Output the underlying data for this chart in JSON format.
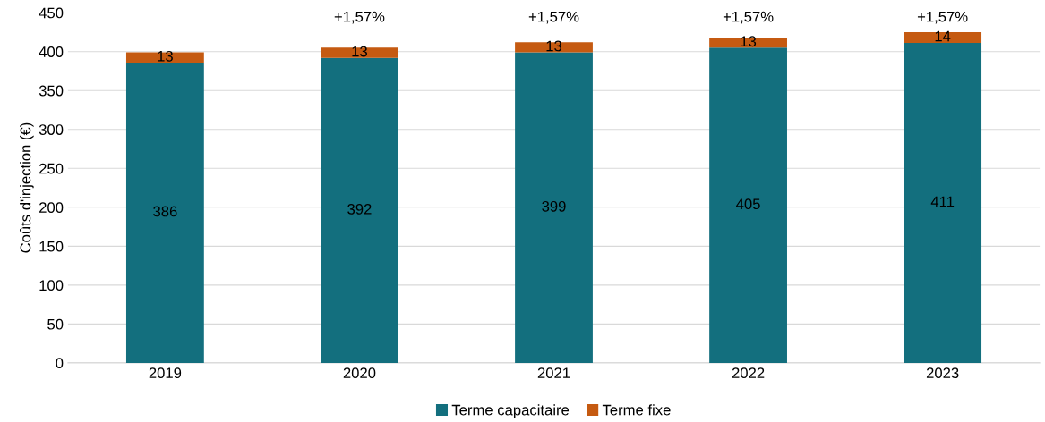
{
  "chart_data": {
    "type": "bar",
    "ylabel": "Coûts d'injection (€)",
    "categories": [
      "2019",
      "2020",
      "2021",
      "2022",
      "2023"
    ],
    "stacked": true,
    "series": [
      {
        "name": "Terme capacitaire",
        "color": "#136f7e",
        "values": [
          386,
          392,
          399,
          405,
          411
        ]
      },
      {
        "name": "Terme fixe",
        "color": "#c55a11",
        "values": [
          13,
          13,
          13,
          13,
          14
        ]
      }
    ],
    "data_labels": true,
    "ylim": [
      0,
      450
    ],
    "yticks": [
      0,
      50,
      100,
      150,
      200,
      250,
      300,
      350,
      400,
      450
    ],
    "grid": "y",
    "legend": "bottom",
    "annotations": [
      "+1,57%",
      "+1,57%",
      "+1,57%",
      "+1,57%"
    ]
  }
}
